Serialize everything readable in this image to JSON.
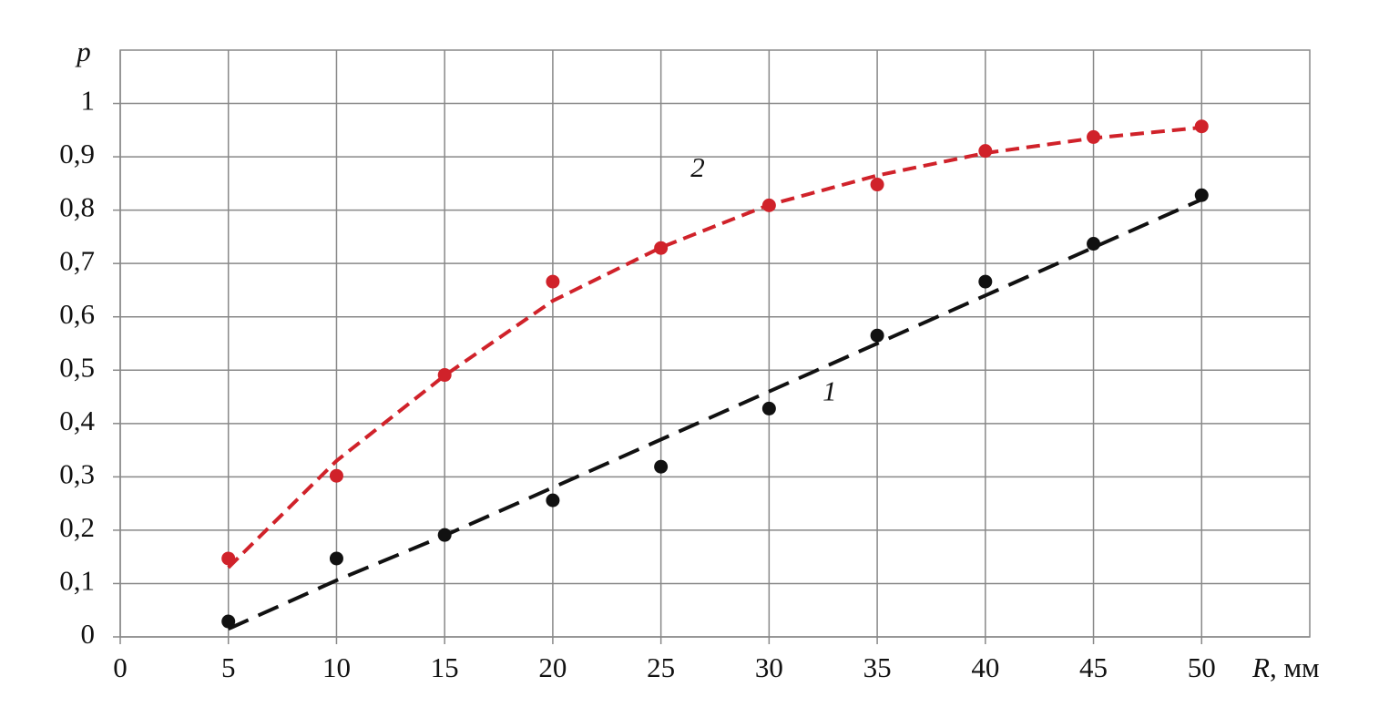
{
  "chart_data": {
    "type": "scatter",
    "x": [
      5,
      10,
      15,
      20,
      25,
      30,
      35,
      40,
      45,
      50
    ],
    "series": [
      {
        "name": "1",
        "color": "#111111",
        "values": [
          0.029,
          0.147,
          0.191,
          0.256,
          0.319,
          0.428,
          0.565,
          0.666,
          0.737,
          0.828
        ],
        "trend": [
          0.015,
          0.106,
          0.19,
          0.28,
          0.37,
          0.46,
          0.55,
          0.64,
          0.73,
          0.82
        ]
      },
      {
        "name": "2",
        "color": "#d0222a",
        "values": [
          0.147,
          0.302,
          0.491,
          0.666,
          0.729,
          0.809,
          0.848,
          0.911,
          0.937,
          0.957
        ],
        "trend": [
          0.13,
          0.33,
          0.49,
          0.63,
          0.73,
          0.81,
          0.865,
          0.907,
          0.935,
          0.955
        ]
      }
    ],
    "annotations": [
      {
        "text": "1",
        "x": 32.8,
        "y": 0.455
      },
      {
        "text": "2",
        "x": 26.7,
        "y": 0.875
      }
    ],
    "x_label": [
      "R",
      ", мм"
    ],
    "y_label": "p",
    "xlim": [
      0,
      55
    ],
    "xticks": [
      0,
      5,
      10,
      15,
      20,
      25,
      30,
      35,
      40,
      45,
      50
    ],
    "ylim": [
      0,
      1.1
    ],
    "yticks": [
      0,
      {
        "value": 0.1,
        "label": "0,1"
      },
      {
        "value": 0.2,
        "label": "0,2"
      },
      {
        "value": 0.3,
        "label": "0,3"
      },
      {
        "value": 0.4,
        "label": "0,4"
      },
      {
        "value": 0.5,
        "label": "0,5"
      },
      {
        "value": 0.6,
        "label": "0,6"
      },
      {
        "value": 0.7,
        "label": "0,7"
      },
      {
        "value": 0.8,
        "label": "0,8"
      },
      {
        "value": 0.9,
        "label": "0,9"
      },
      1
    ],
    "grid": true
  }
}
